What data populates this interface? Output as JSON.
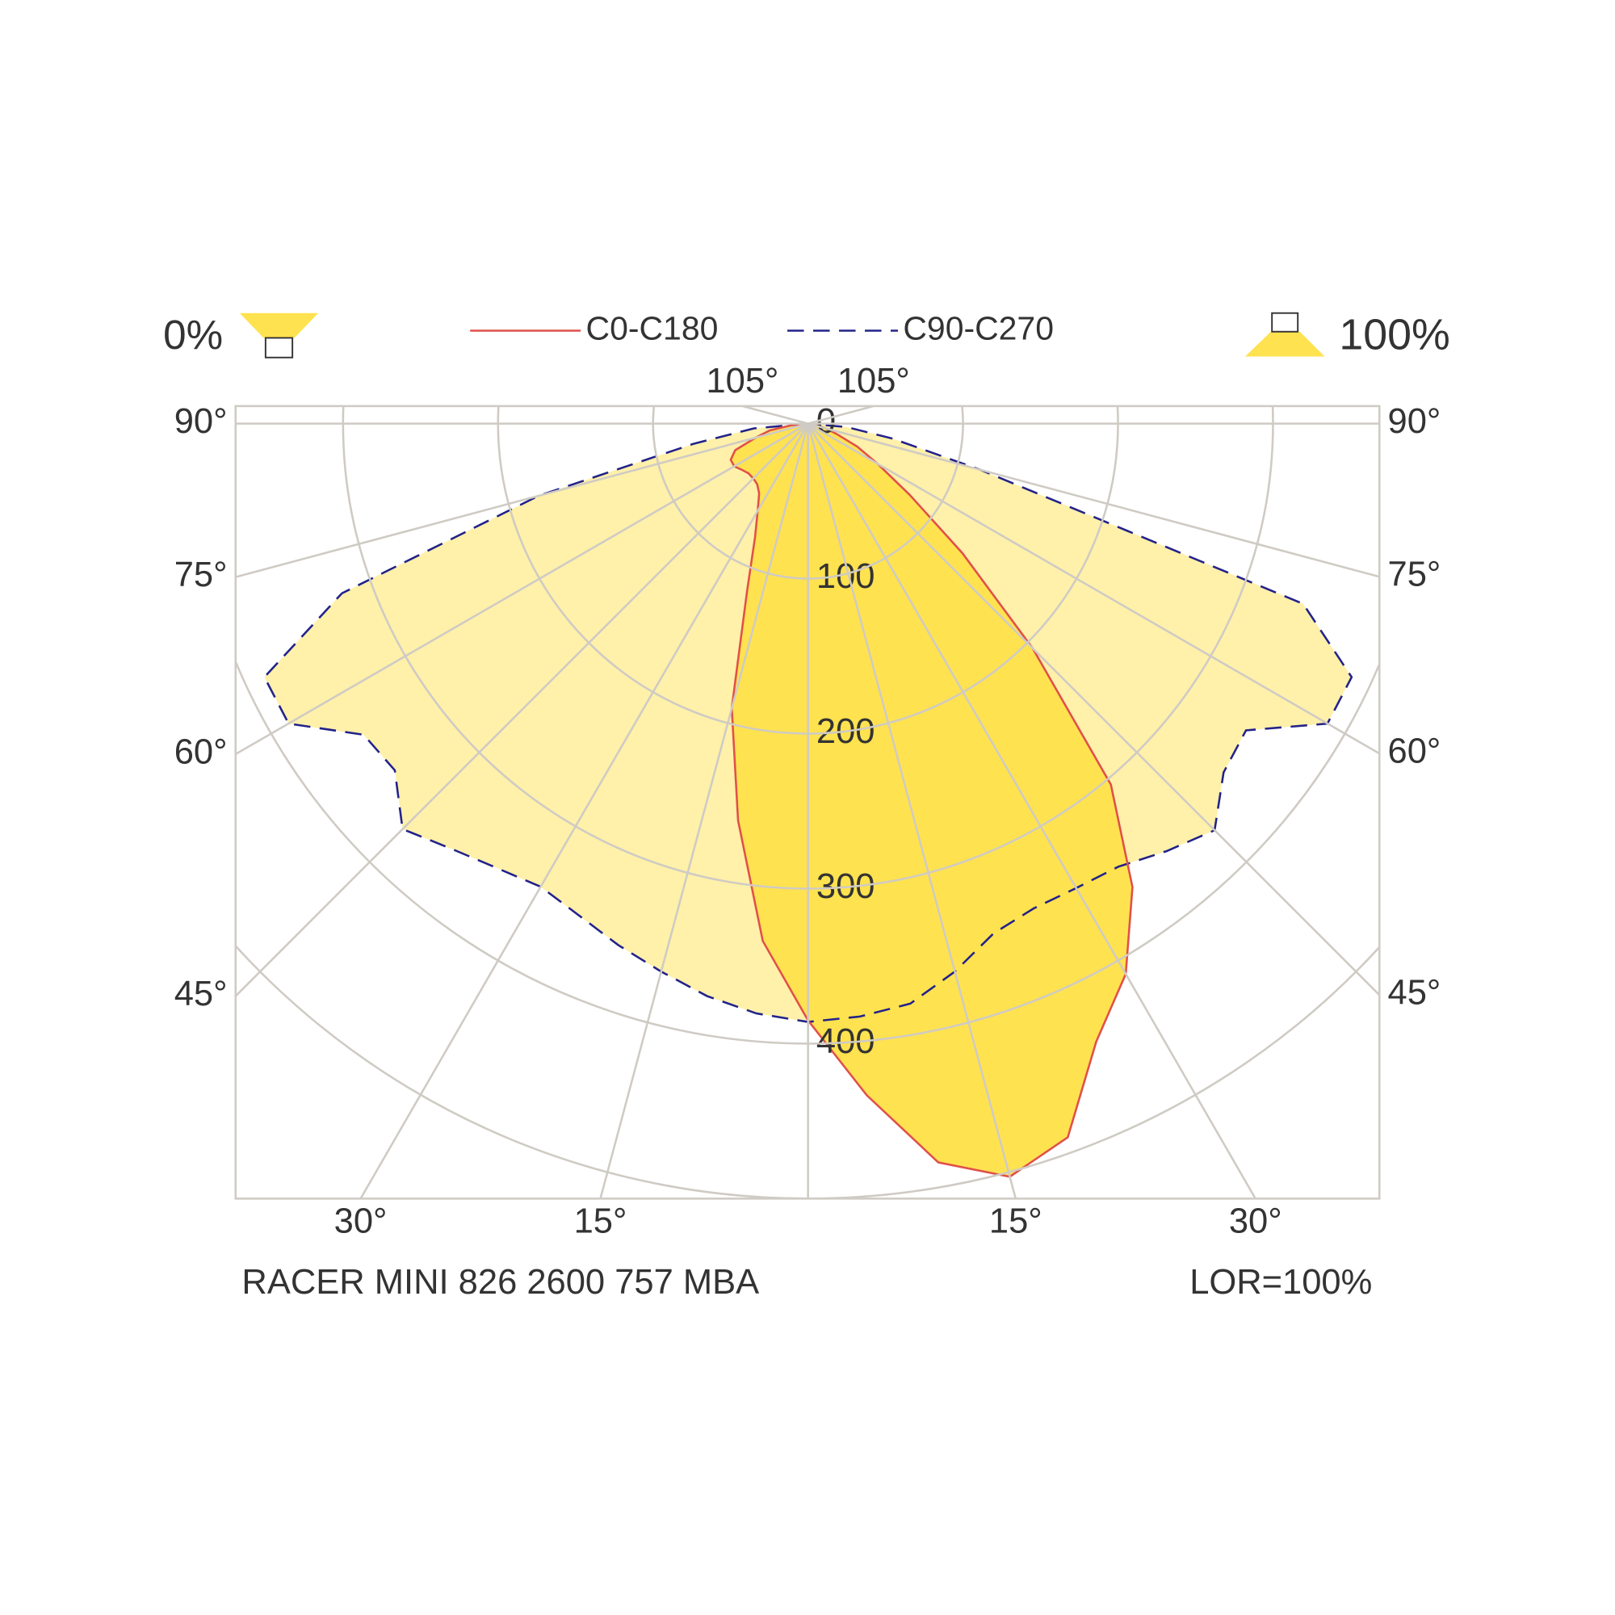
{
  "chart_data": {
    "type": "polar",
    "title": "RACER MINI 826 2600 757 MBA",
    "lor": "LOR=100%",
    "upward_ratio": "0%",
    "downward_ratio": "100%",
    "angles": [
      -90,
      -85,
      -80,
      -75,
      -70,
      -65,
      -60,
      -55,
      -50,
      -45,
      -40,
      -35,
      -30,
      -25,
      -20,
      -15,
      -10,
      -5,
      0,
      5,
      10,
      15,
      20,
      25,
      30,
      35,
      40,
      45,
      50,
      55,
      60,
      65,
      70,
      75,
      80,
      85,
      90
    ],
    "series": [
      {
        "name": "C90-C270",
        "color": "#22228a",
        "fill": "#fff0aa",
        "dashed": true,
        "values": [
          0,
          35,
          75,
          180,
          320,
          387,
          387,
          350,
          348,
          370,
          358,
          350,
          345,
          350,
          358,
          366,
          375,
          382,
          386,
          384,
          380,
          366,
          350,
          345,
          346,
          349,
          360,
          371,
          350,
          345,
          387,
          387,
          340,
          115,
          55,
          25,
          0
        ]
      },
      {
        "name": "C0-C180",
        "color": "#e0504a",
        "fill": "#ffe24f",
        "dashed": false,
        "values": [
          0,
          10,
          25,
          35,
          50,
          55,
          55,
          52,
          50,
          50,
          51,
          55,
          65,
          81,
          115,
          190,
          260,
          335,
          385,
          435,
          484,
          503,
          490,
          440,
          410,
          365,
          304,
          205,
          130,
          80,
          52,
          35,
          20,
          12,
          6,
          3,
          0
        ]
      }
    ],
    "rlim": [
      0,
      500
    ],
    "rticks": [
      0,
      100,
      200,
      300,
      400
    ],
    "angle_ticks": [
      {
        "value": -105,
        "label": "105°"
      },
      {
        "value": -90,
        "label": "90°"
      },
      {
        "value": -75,
        "label": "75°"
      },
      {
        "value": -60,
        "label": "60°"
      },
      {
        "value": -45,
        "label": "45°"
      },
      {
        "value": -30,
        "label": "30°"
      },
      {
        "value": -15,
        "label": "15°"
      },
      {
        "value": 0,
        "label": null
      },
      {
        "value": 15,
        "label": "15°"
      },
      {
        "value": 30,
        "label": "30°"
      },
      {
        "value": 45,
        "label": "45°"
      },
      {
        "value": 60,
        "label": "60°"
      },
      {
        "value": 75,
        "label": "75°"
      },
      {
        "value": 90,
        "label": "90°"
      },
      {
        "value": 105,
        "label": "105°"
      }
    ],
    "grid": true
  }
}
